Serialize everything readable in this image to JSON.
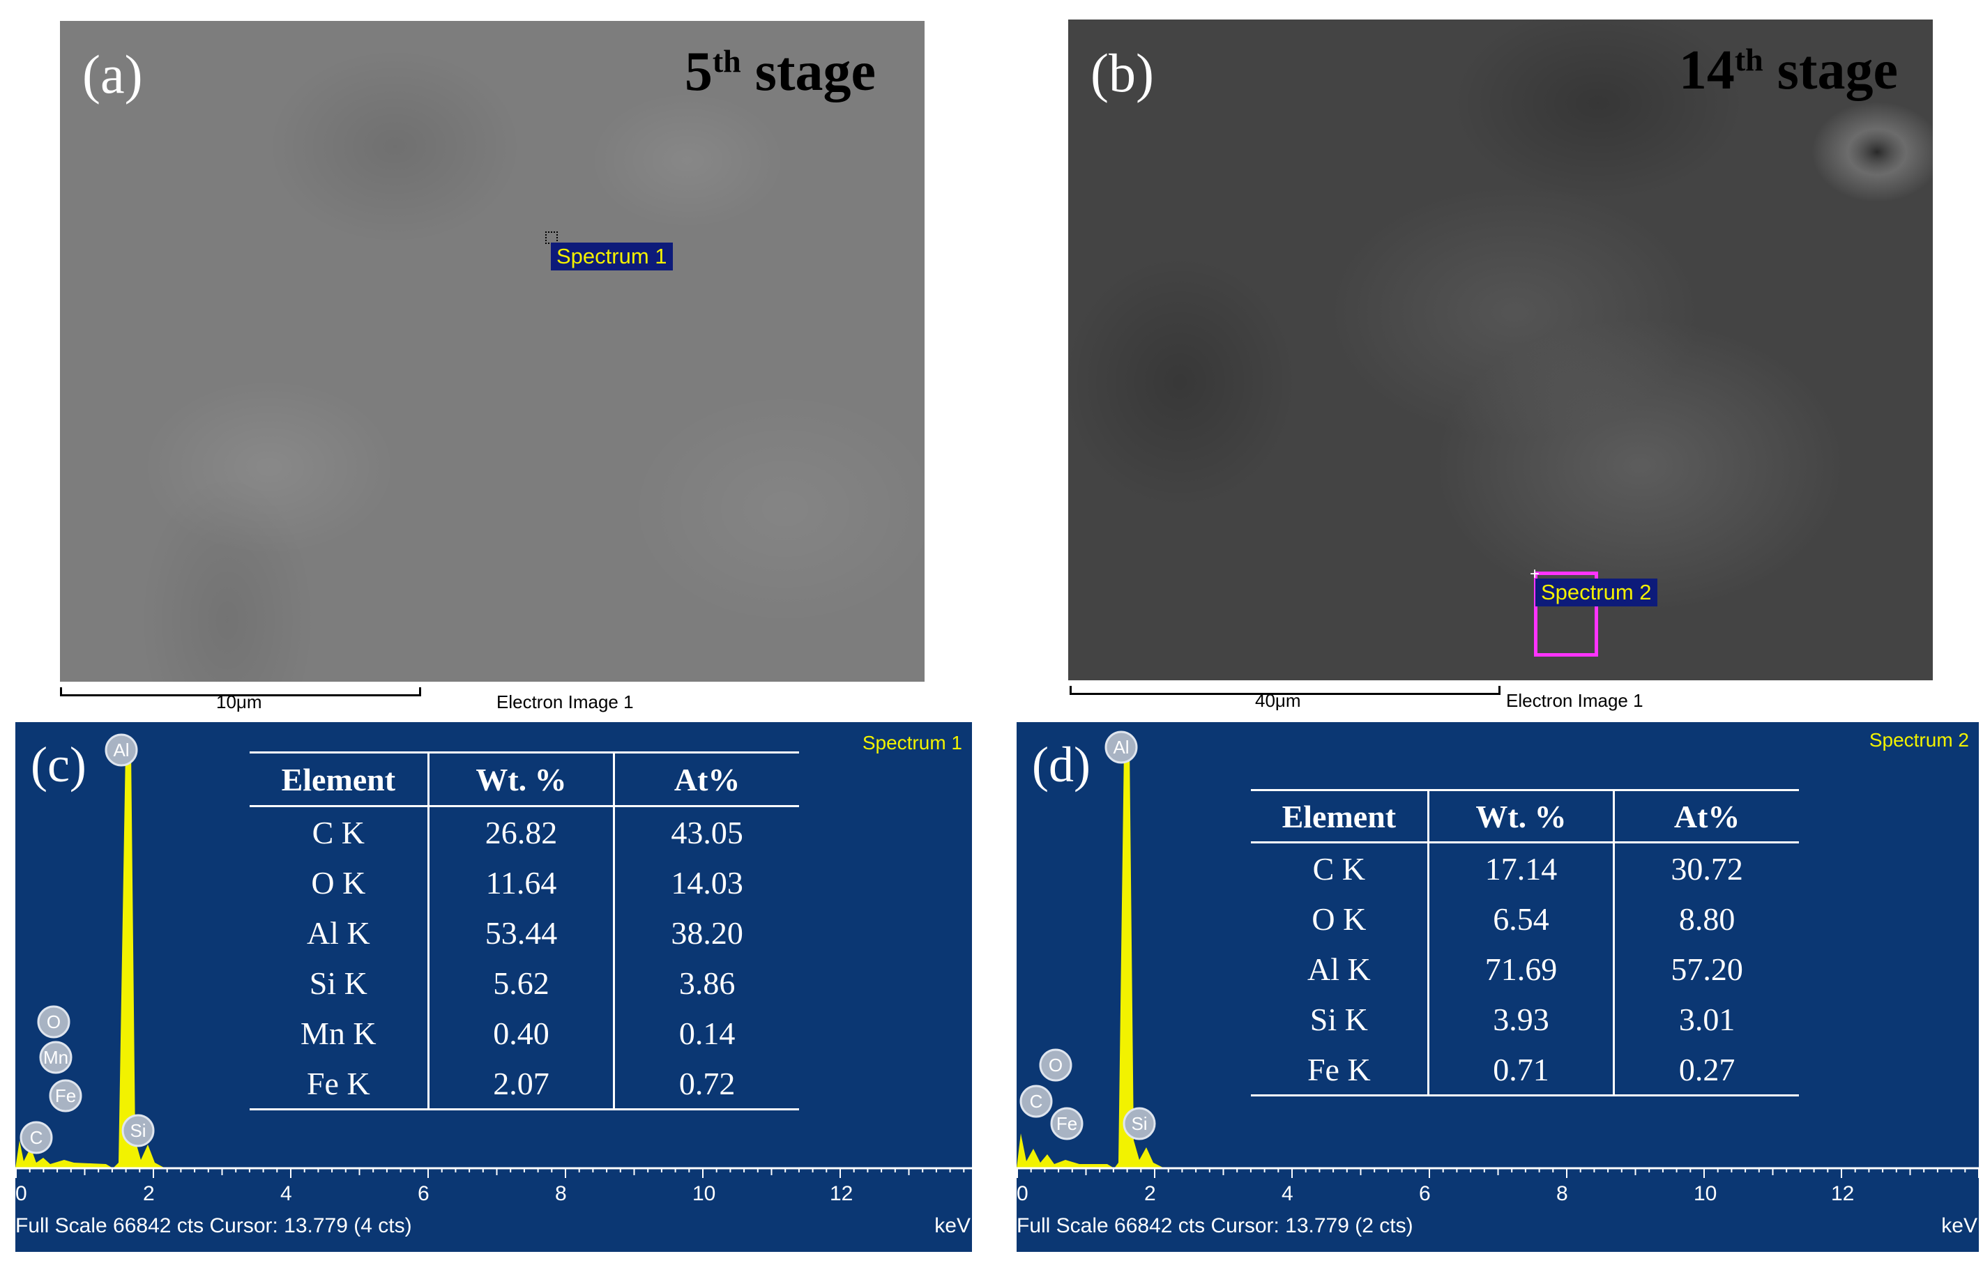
{
  "panel_a": {
    "label": "(a)",
    "stage_num": "5",
    "stage_sup": "th",
    "stage_word": " stage",
    "spectrum_tag": "Spectrum 1",
    "scale": "10μm",
    "caption": "Electron Image 1"
  },
  "panel_b": {
    "label": "(b)",
    "stage_num": "14",
    "stage_sup": "th",
    "stage_word": " stage",
    "spectrum_tag": "Spectrum 2",
    "scale": "40μm",
    "caption": "Electron Image 1"
  },
  "panel_c": {
    "label": "(c)",
    "title": "Spectrum 1",
    "footer": "Full Scale 66842 cts Cursor: 13.779  (4 cts)",
    "unit": "keV",
    "axis_ticks": [
      "0",
      "2",
      "4",
      "6",
      "8",
      "10",
      "12"
    ],
    "peak_labels": [
      "Al",
      "O",
      "Mn",
      "Fe",
      "C",
      "Si"
    ],
    "table": {
      "headers": [
        "Element",
        "Wt. %",
        "At%"
      ],
      "rows": [
        [
          "C K",
          "26.82",
          "43.05"
        ],
        [
          "O K",
          "11.64",
          "14.03"
        ],
        [
          "Al K",
          "53.44",
          "38.20"
        ],
        [
          "Si K",
          "5.62",
          "3.86"
        ],
        [
          "Mn K",
          "0.40",
          "0.14"
        ],
        [
          "Fe K",
          "2.07",
          "0.72"
        ]
      ]
    }
  },
  "panel_d": {
    "label": "(d)",
    "title": "Spectrum 2",
    "footer": "Full Scale 66842 cts Cursor: 13.779  (2 cts)",
    "unit": "keV",
    "axis_ticks": [
      "0",
      "2",
      "4",
      "6",
      "8",
      "10",
      "12"
    ],
    "peak_labels": [
      "Al",
      "O",
      "C",
      "Fe",
      "Si"
    ],
    "table": {
      "headers": [
        "Element",
        "Wt. %",
        "At%"
      ],
      "rows": [
        [
          "C K",
          "17.14",
          "30.72"
        ],
        [
          "O K",
          "6.54",
          "8.80"
        ],
        [
          "Al K",
          "71.69",
          "57.20"
        ],
        [
          "Si K",
          "3.93",
          "3.01"
        ],
        [
          "Fe K",
          "0.71",
          "0.27"
        ]
      ]
    }
  },
  "colors": {
    "eds_background": "#0b3773",
    "spectrum_fill": "#f2f200",
    "tag_background": "#0d1b7a",
    "tag_text": "#f4f100",
    "roi_box": "#ff33ff"
  }
}
